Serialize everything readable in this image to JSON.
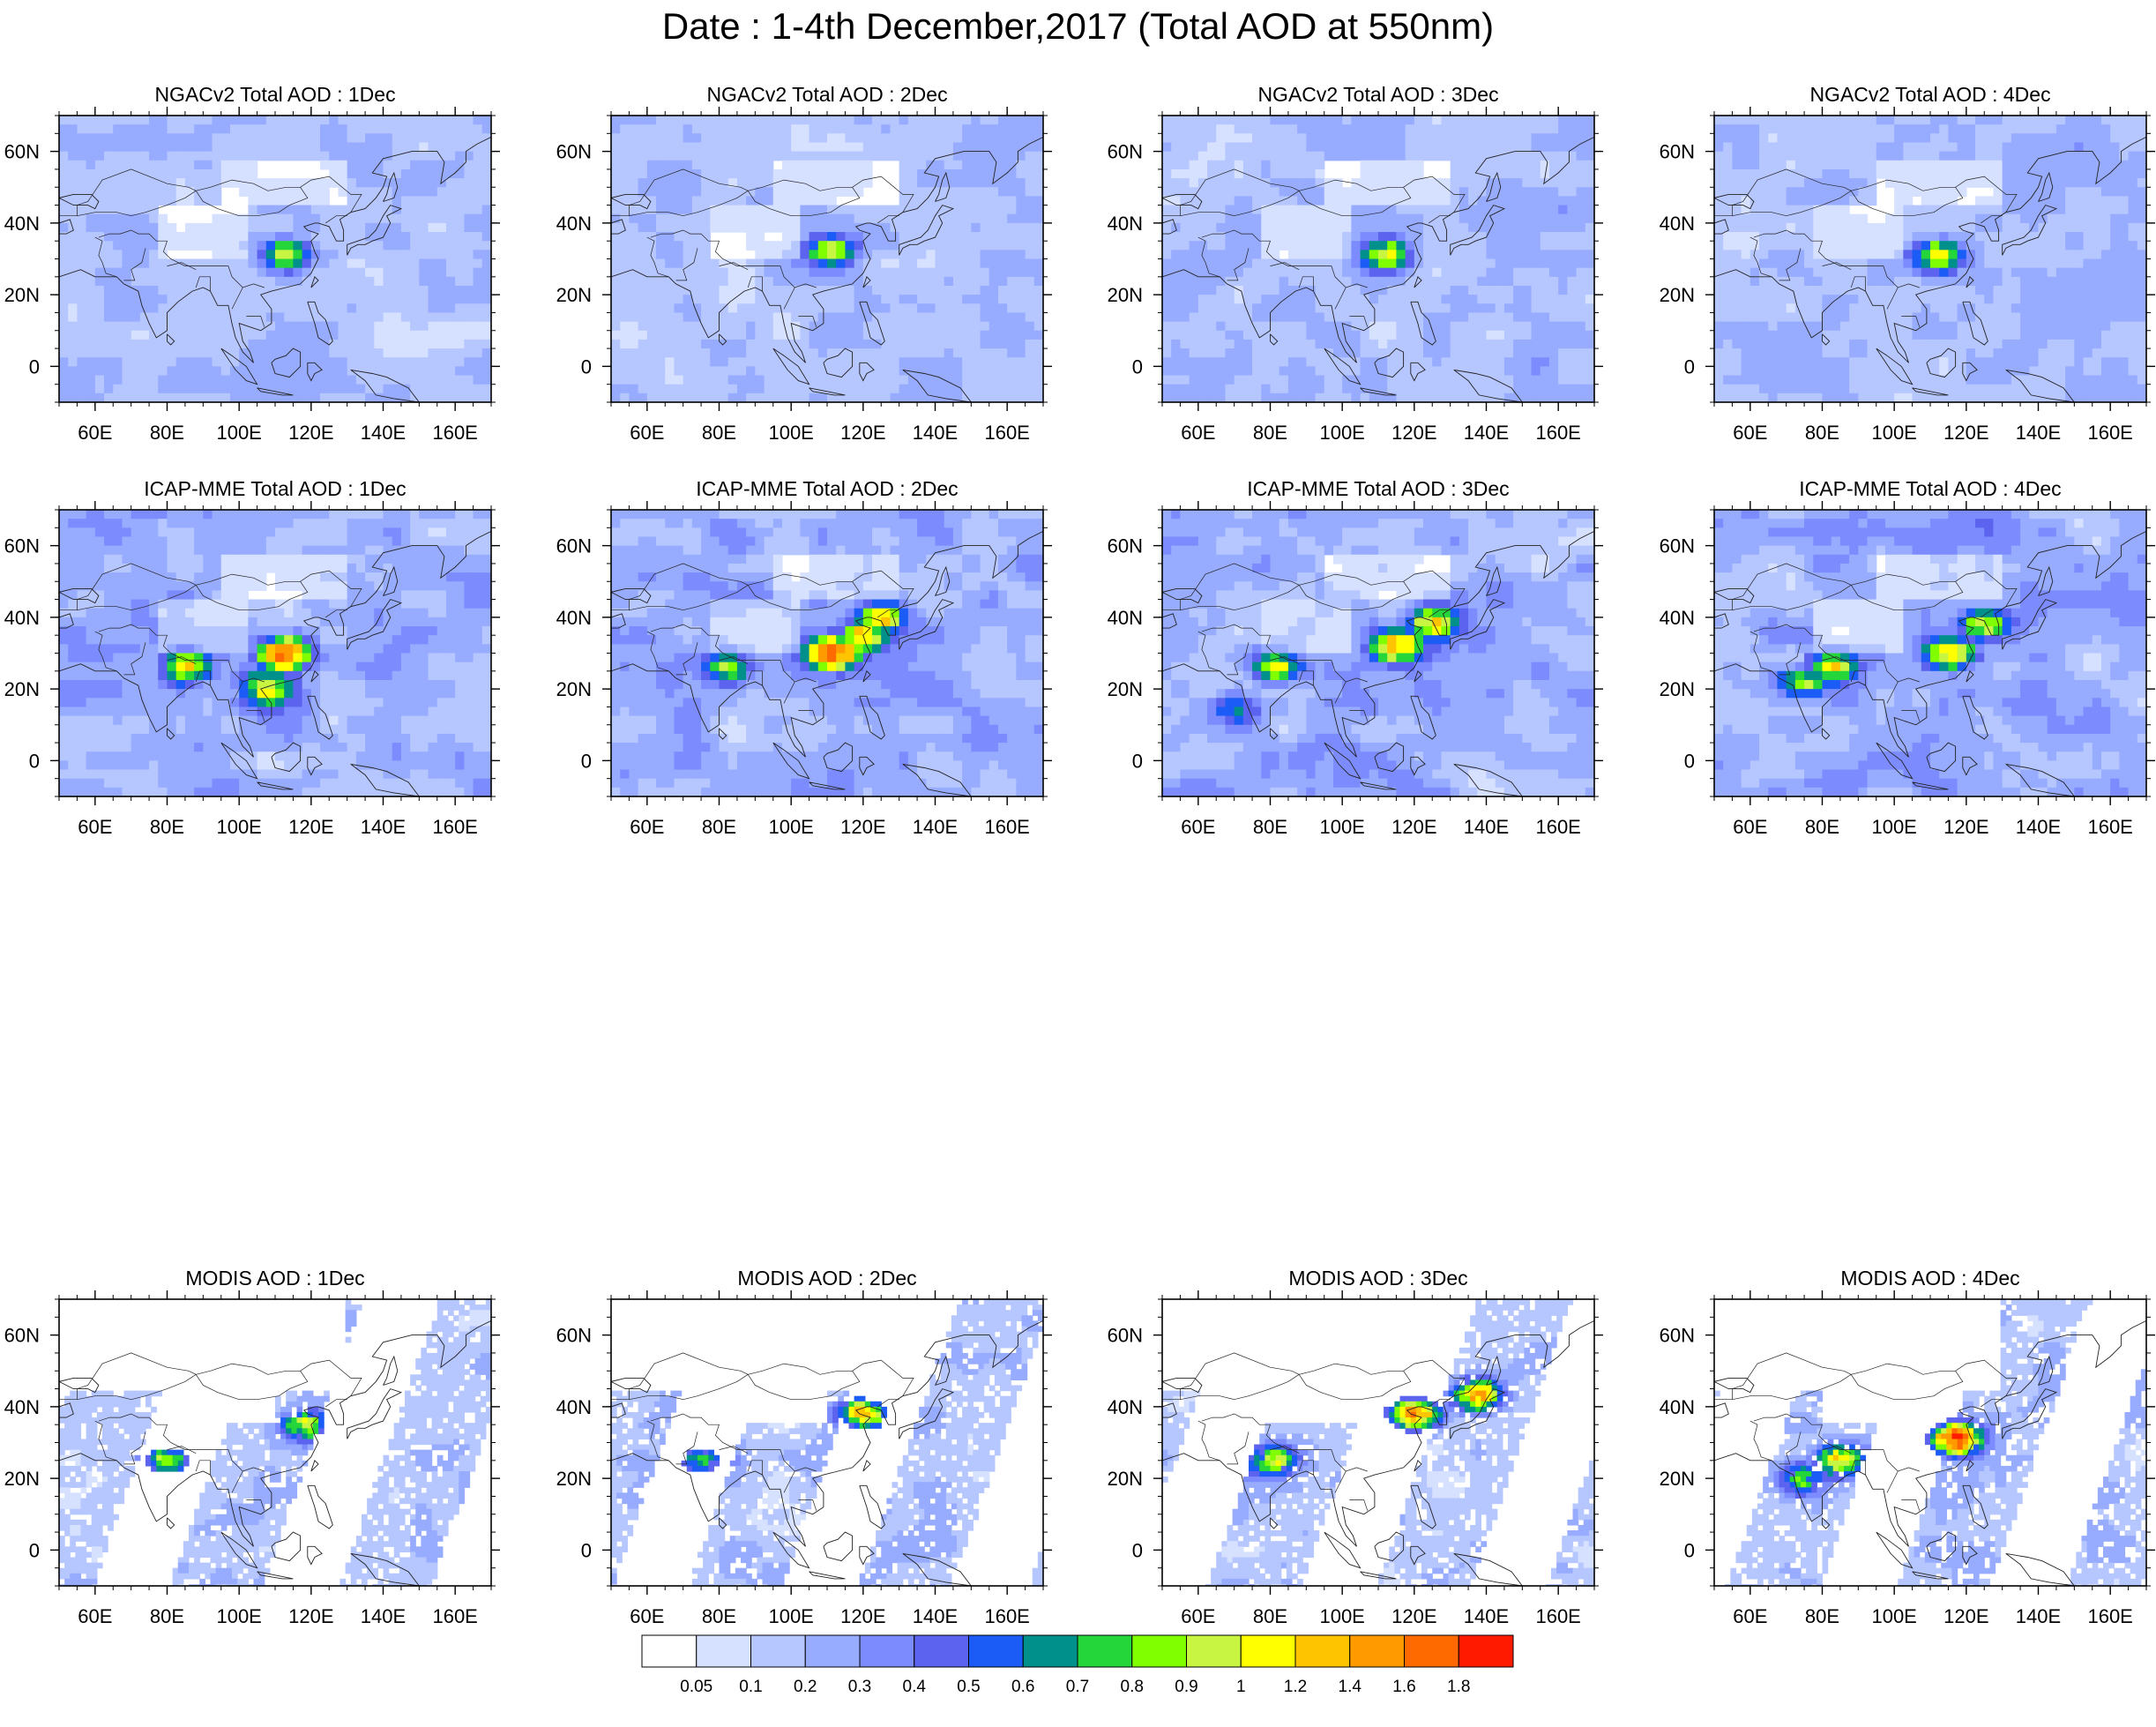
{
  "title": "Date : 1-4th December,2017 (Total AOD at 550nm)",
  "rows": [
    {
      "panels": [
        {
          "title": "NGACv2 Total AOD : 1Dec",
          "kind": "model",
          "day": 1,
          "intensity": 0.55,
          "hotspots": [
            {
              "lon": 113,
              "lat": 31,
              "peak": 0.85
            }
          ]
        },
        {
          "title": "NGACv2 Total AOD : 2Dec",
          "kind": "model",
          "day": 2,
          "intensity": 0.55,
          "hotspots": [
            {
              "lon": 111,
              "lat": 32,
              "peak": 0.8
            }
          ]
        },
        {
          "title": "NGACv2 Total AOD : 3Dec",
          "kind": "model",
          "day": 3,
          "intensity": 0.6,
          "hotspots": [
            {
              "lon": 112,
              "lat": 31,
              "peak": 0.9
            }
          ]
        },
        {
          "title": "NGACv2 Total AOD : 4Dec",
          "kind": "model",
          "day": 4,
          "intensity": 0.6,
          "hotspots": [
            {
              "lon": 112,
              "lat": 31,
              "peak": 0.95
            }
          ]
        }
      ]
    },
    {
      "panels": [
        {
          "title": "ICAP-MME Total AOD : 1Dec",
          "kind": "model",
          "day": 1,
          "intensity": 0.75,
          "hotspots": [
            {
              "lon": 113,
              "lat": 30,
              "peak": 1.5
            },
            {
              "lon": 85,
              "lat": 26,
              "peak": 0.9
            },
            {
              "lon": 108,
              "lat": 20,
              "peak": 0.9
            }
          ]
        },
        {
          "title": "ICAP-MME Total AOD : 2Dec",
          "kind": "model",
          "day": 2,
          "intensity": 0.8,
          "hotspots": [
            {
              "lon": 112,
              "lat": 30,
              "peak": 1.6
            },
            {
              "lon": 120,
              "lat": 35,
              "peak": 1.0
            },
            {
              "lon": 125,
              "lat": 40,
              "peak": 0.9
            },
            {
              "lon": 82,
              "lat": 26,
              "peak": 0.7
            }
          ]
        },
        {
          "title": "ICAP-MME Total AOD : 3Dec",
          "kind": "model",
          "day": 3,
          "intensity": 0.8,
          "hotspots": [
            {
              "lon": 115,
              "lat": 32,
              "peak": 1.1
            },
            {
              "lon": 125,
              "lat": 38,
              "peak": 1.0
            },
            {
              "lon": 82,
              "lat": 26,
              "peak": 0.8
            },
            {
              "lon": 70,
              "lat": 15,
              "peak": 0.5
            }
          ]
        },
        {
          "title": "ICAP-MME Total AOD : 4Dec",
          "kind": "model",
          "day": 4,
          "intensity": 0.8,
          "hotspots": [
            {
              "lon": 115,
              "lat": 30,
              "peak": 1.1
            },
            {
              "lon": 125,
              "lat": 38,
              "peak": 0.8
            },
            {
              "lon": 83,
              "lat": 26,
              "peak": 0.9
            },
            {
              "lon": 74,
              "lat": 22,
              "peak": 0.7
            }
          ]
        }
      ]
    },
    {
      "panels": [
        {
          "title": "MODIS AOD : 1Dec",
          "kind": "obs",
          "day": 1,
          "intensity": 0.5,
          "hotspots": [
            {
              "lon": 80,
              "lat": 25,
              "peak": 0.9
            },
            {
              "lon": 118,
              "lat": 35,
              "peak": 0.9
            }
          ]
        },
        {
          "title": "MODIS AOD : 2Dec",
          "kind": "obs",
          "day": 2,
          "intensity": 0.55,
          "hotspots": [
            {
              "lon": 75,
              "lat": 25,
              "peak": 0.7
            },
            {
              "lon": 120,
              "lat": 38,
              "peak": 1.3
            }
          ]
        },
        {
          "title": "MODIS AOD : 3Dec",
          "kind": "obs",
          "day": 3,
          "intensity": 0.55,
          "hotspots": [
            {
              "lon": 120,
              "lat": 38,
              "peak": 1.6
            },
            {
              "lon": 138,
              "lat": 43,
              "peak": 1.2
            },
            {
              "lon": 80,
              "lat": 25,
              "peak": 0.8
            }
          ]
        },
        {
          "title": "MODIS AOD : 4Dec",
          "kind": "obs",
          "day": 4,
          "intensity": 0.55,
          "hotspots": [
            {
              "lon": 117,
              "lat": 31,
              "peak": 1.8
            },
            {
              "lon": 85,
              "lat": 25,
              "peak": 0.9
            },
            {
              "lon": 75,
              "lat": 20,
              "peak": 0.6
            }
          ]
        }
      ]
    }
  ],
  "axes": {
    "lon_range": [
      50,
      170
    ],
    "lat_range": [
      -10,
      70
    ],
    "lon_ticks": [
      {
        "v": 60,
        "label": "60E"
      },
      {
        "v": 80,
        "label": "80E"
      },
      {
        "v": 100,
        "label": "100E"
      },
      {
        "v": 120,
        "label": "120E"
      },
      {
        "v": 140,
        "label": "140E"
      },
      {
        "v": 160,
        "label": "160E"
      }
    ],
    "lat_ticks": [
      {
        "v": 60,
        "label": "60N"
      },
      {
        "v": 40,
        "label": "40N"
      },
      {
        "v": 20,
        "label": "20N"
      },
      {
        "v": 0,
        "label": "0"
      }
    ]
  },
  "colorbar": {
    "levels": [
      "0.05",
      "0.1",
      "0.2",
      "0.3",
      "0.4",
      "0.5",
      "0.6",
      "0.7",
      "0.8",
      "0.9",
      "1",
      "1.2",
      "1.4",
      "1.6",
      "1.8"
    ],
    "level_values": [
      0.05,
      0.1,
      0.2,
      0.3,
      0.4,
      0.5,
      0.6,
      0.7,
      0.8,
      0.9,
      1,
      1.2,
      1.4,
      1.6,
      1.8
    ],
    "colors": [
      "#ffffff",
      "#d6e0ff",
      "#b6c6ff",
      "#97abff",
      "#7c8cff",
      "#5c63ef",
      "#1a5cf5",
      "#00908c",
      "#25d63b",
      "#7fff00",
      "#c8f542",
      "#ffff00",
      "#ffc400",
      "#ff9a00",
      "#ff6a00",
      "#ff1a00"
    ]
  }
}
